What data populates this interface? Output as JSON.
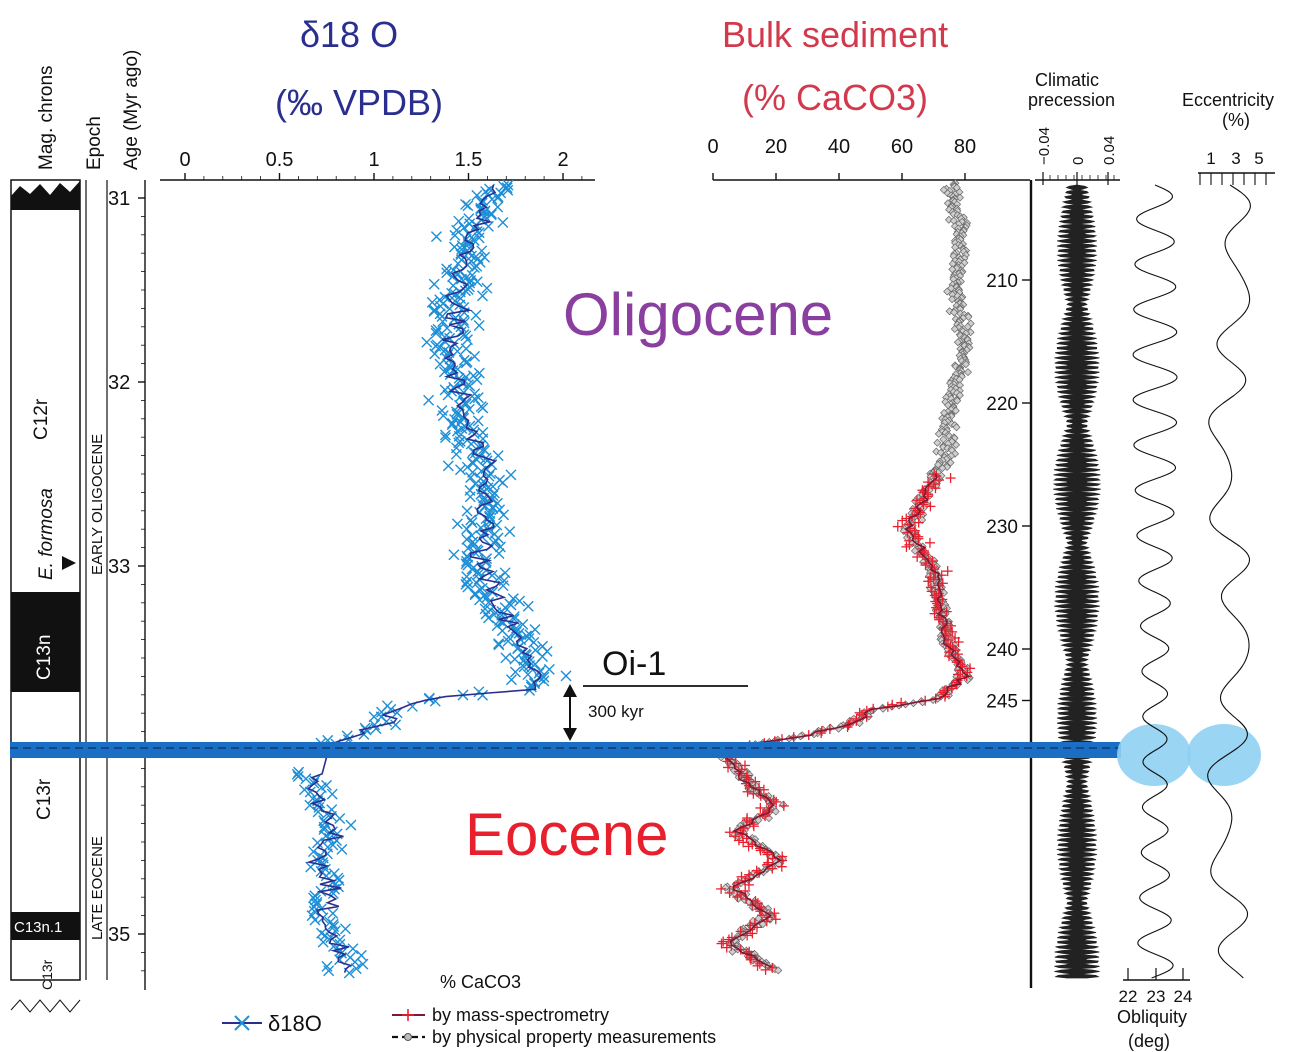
{
  "titles": {
    "d18o_line1": "δ18 O",
    "d18o_line2": "(‰ VPDB)",
    "bulk_line1": "Bulk sediment",
    "bulk_line2": "(% CaCO3)",
    "precession": [
      "Climatic",
      "precession"
    ],
    "eccentricity": [
      "Eccentricity",
      "(%)"
    ],
    "obliquity": [
      "Obliquity",
      "(deg)"
    ]
  },
  "column_headers": {
    "mag_chrons": "Mag. chrons",
    "epoch": "Epoch",
    "age": "Age (Myr ago)"
  },
  "epoch_labels": [
    "EARLY  OLIGOCENE",
    "LATE EOCENE"
  ],
  "chron_labels": [
    "C12r",
    "C13n",
    "C13r",
    "C13n.1",
    "C13r"
  ],
  "marker_label": "E. formosa",
  "annotations": {
    "oligocene": "Oligocene",
    "eocene": "Eocene",
    "oi1": "Oi-1",
    "kyr": "300 kyr"
  },
  "legend": {
    "d18o": "δ18O",
    "caco3_header": "% CaCO3",
    "mass_spec": "by mass-spectrometry",
    "physical": "by physical property measurements"
  },
  "colors": {
    "d18o_points": "#1e8fd6",
    "d18o_line": "#2a2f8f",
    "mass_spec": "#e8202e",
    "mass_spec_line": "#7a1a35",
    "physical": "#888888",
    "boundary_band": "#1a6fc4",
    "ellipse": "#8fd0f2",
    "oligocene_text": "#8a3fa0",
    "eocene_text": "#e8202e",
    "title_blue": "#2a2f8f",
    "title_red": "#d13a4c"
  },
  "chart_data": {
    "type": "scatter",
    "age_axis": {
      "label": "Age (Myr ago)",
      "ticks": [
        31,
        32,
        33,
        34,
        35
      ],
      "range": [
        30.9,
        35.3
      ]
    },
    "d18o_axis": {
      "ticks": [
        0,
        0.5,
        1,
        1.5,
        2
      ],
      "labels": [
        "0",
        "0.5",
        "1",
        "1.5",
        "2"
      ],
      "range": [
        0,
        2.15
      ]
    },
    "caco3_axis": {
      "ticks": [
        0,
        20,
        40,
        60,
        80
      ],
      "range": [
        0,
        88
      ]
    },
    "depth_axis": {
      "ticks": [
        210,
        220,
        230,
        240,
        245
      ],
      "labels": [
        "210",
        "220",
        "230",
        "240",
        "245"
      ]
    },
    "precession_axis": {
      "ticks": [
        -0.04,
        0,
        0.04
      ],
      "labels": [
        "−0.04",
        "0",
        "0.04"
      ]
    },
    "eccentricity_axis": {
      "ticks": [
        1,
        3,
        5
      ],
      "labels": [
        "1",
        "3",
        "5"
      ]
    },
    "obliquity_axis": {
      "ticks": [
        22,
        23,
        24
      ],
      "labels": [
        "22",
        "23",
        "24"
      ]
    },
    "boundary_age": 34.0,
    "oi1_age": 33.65,
    "d18o_trend": {
      "age": [
        30.92,
        31.2,
        31.5,
        31.8,
        32.1,
        32.4,
        32.7,
        33.0,
        33.3,
        33.5,
        33.6,
        33.67,
        33.72,
        33.78,
        33.85,
        33.92,
        33.98,
        34.15,
        34.3,
        34.45,
        34.6,
        34.75,
        34.9,
        35.05,
        35.2
      ],
      "value": [
        1.65,
        1.5,
        1.45,
        1.4,
        1.45,
        1.55,
        1.6,
        1.55,
        1.7,
        1.8,
        1.9,
        1.85,
        1.25,
        1.1,
        1.05,
        0.9,
        0.75,
        0.65,
        0.7,
        0.8,
        0.72,
        0.78,
        0.7,
        0.82,
        0.85
      ]
    },
    "caco3_trend": {
      "age": [
        30.9,
        31.2,
        31.5,
        31.8,
        32.1,
        32.4,
        32.6,
        32.8,
        33.0,
        33.2,
        33.4,
        33.6,
        33.72,
        33.78,
        33.85,
        33.92,
        34.0,
        34.1,
        34.2,
        34.3,
        34.45,
        34.6,
        34.75,
        34.9,
        35.05,
        35.2
      ],
      "value": [
        75,
        79,
        77,
        80,
        76,
        74,
        68,
        62,
        70,
        72,
        74,
        80,
        72,
        50,
        45,
        30,
        2,
        8,
        12,
        20,
        8,
        22,
        6,
        18,
        5,
        20
      ]
    }
  }
}
